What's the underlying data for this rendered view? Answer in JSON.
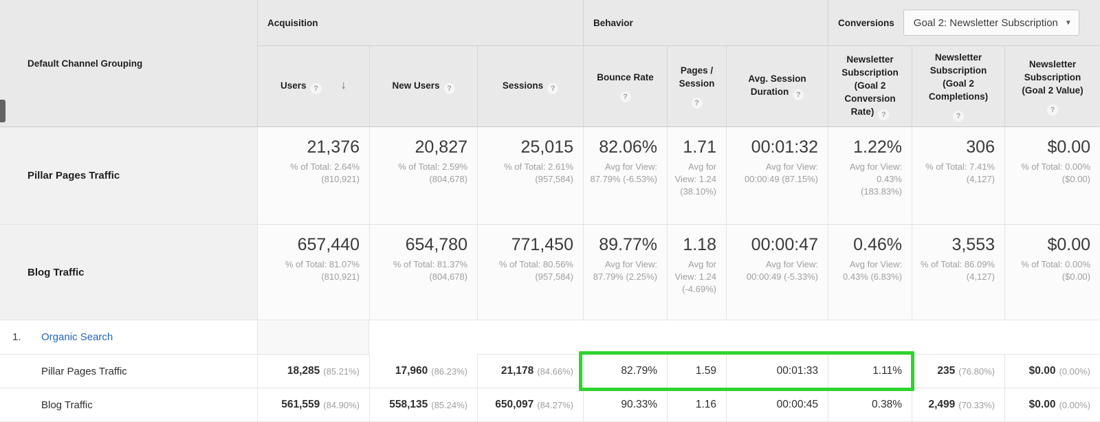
{
  "colors": {
    "header_bg": "#e9e9e9",
    "highlight_green": "#2fd42e",
    "link_blue": "#2266bb"
  },
  "icons": {
    "help": "?",
    "sort_desc": "↓",
    "caret_down": "▼"
  },
  "header": {
    "dimension_label": "Default Channel Grouping",
    "groups": {
      "acquisition": "Acquisition",
      "behavior": "Behavior",
      "conversions": "Conversions"
    },
    "goal_selector": {
      "value": "Goal 2: Newsletter Subscription"
    },
    "columns": {
      "users": "Users",
      "new_users": "New Users",
      "sessions": "Sessions",
      "bounce_rate": "Bounce Rate",
      "pages_session": "Pages / Session",
      "avg_session_duration": "Avg. Session Duration",
      "goal_conv_rate": "Newsletter Subscription (Goal 2 Conversion Rate)",
      "goal_completions": "Newsletter Subscription (Goal 2 Completions)",
      "goal_value": "Newsletter Subscription (Goal 2 Value)"
    }
  },
  "summary_rows": [
    {
      "label": "Pillar Pages Traffic",
      "users": {
        "value": "21,376",
        "sub": "% of Total: 2.64% (810,921)"
      },
      "new_users": {
        "value": "20,827",
        "sub": "% of Total: 2.59% (804,678)"
      },
      "sessions": {
        "value": "25,015",
        "sub": "% of Total: 2.61% (957,584)"
      },
      "bounce_rate": {
        "value": "82.06%",
        "sub": "Avg for View: 87.79% (-6.53%)"
      },
      "pages_session": {
        "value": "1.71",
        "sub": "Avg for View: 1.24 (38.10%)"
      },
      "avg_session_duration": {
        "value": "00:01:32",
        "sub": "Avg for View: 00:00:49 (87.15%)"
      },
      "goal_conv_rate": {
        "value": "1.22%",
        "sub": "Avg for View: 0.43% (183.83%)"
      },
      "goal_completions": {
        "value": "306",
        "sub": "% of Total: 7.41% (4,127)"
      },
      "goal_value": {
        "value": "$0.00",
        "sub": "% of Total: 0.00% ($0.00)"
      }
    },
    {
      "label": "Blog Traffic",
      "users": {
        "value": "657,440",
        "sub": "% of Total: 81.07% (810,921)"
      },
      "new_users": {
        "value": "654,780",
        "sub": "% of Total: 81.37% (804,678)"
      },
      "sessions": {
        "value": "771,450",
        "sub": "% of Total: 80.56% (957,584)"
      },
      "bounce_rate": {
        "value": "89.77%",
        "sub": "Avg for View: 87.79% (2.25%)"
      },
      "pages_session": {
        "value": "1.18",
        "sub": "Avg for View: 1.24 (-4.69%)"
      },
      "avg_session_duration": {
        "value": "00:00:47",
        "sub": "Avg for View: 00:00:49 (-5.33%)"
      },
      "goal_conv_rate": {
        "value": "0.46%",
        "sub": "Avg for View: 0.43% (6.83%)"
      },
      "goal_completions": {
        "value": "3,553",
        "sub": "% of Total: 86.09% (4,127)"
      },
      "goal_value": {
        "value": "$0.00",
        "sub": "% of Total: 0.00% ($0.00)"
      }
    }
  ],
  "detail_section": {
    "index": "1.",
    "channel": "Organic Search"
  },
  "detail_rows": [
    {
      "label": "Pillar Pages Traffic",
      "users": {
        "value": "18,285",
        "share": "(85.21%)"
      },
      "new_users": {
        "value": "17,960",
        "share": "(86.23%)"
      },
      "sessions": {
        "value": "21,178",
        "share": "(84.66%)"
      },
      "bounce_rate": "82.79%",
      "pages_session": "1.59",
      "avg_session_duration": "00:01:33",
      "goal_conv_rate": "1.11%",
      "goal_completions": {
        "value": "235",
        "share": "(76.80%)"
      },
      "goal_value": {
        "value": "$0.00",
        "share": "(0.00%)"
      }
    },
    {
      "label": "Blog Traffic",
      "users": {
        "value": "561,559",
        "share": "(84.90%)"
      },
      "new_users": {
        "value": "558,135",
        "share": "(85.24%)"
      },
      "sessions": {
        "value": "650,097",
        "share": "(84.27%)"
      },
      "bounce_rate": "90.33%",
      "pages_session": "1.16",
      "avg_session_duration": "00:00:45",
      "goal_conv_rate": "0.38%",
      "goal_completions": {
        "value": "2,499",
        "share": "(70.33%)"
      },
      "goal_value": {
        "value": "$0.00",
        "share": "(0.00%)"
      }
    }
  ]
}
